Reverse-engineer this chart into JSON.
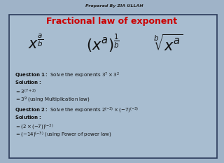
{
  "bg_outer": "#9fb3c8",
  "bg_inner": "#a8bdd0",
  "border_color": "#2a3a5a",
  "title": "Fractional law of exponent",
  "title_color": "#cc0000",
  "header_text": "Prepared By ZIA ULLAH",
  "header_color": "#222222",
  "math_color": "#111111",
  "body_color": "#111111",
  "fig_w": 3.2,
  "fig_h": 2.33,
  "dpi": 100
}
